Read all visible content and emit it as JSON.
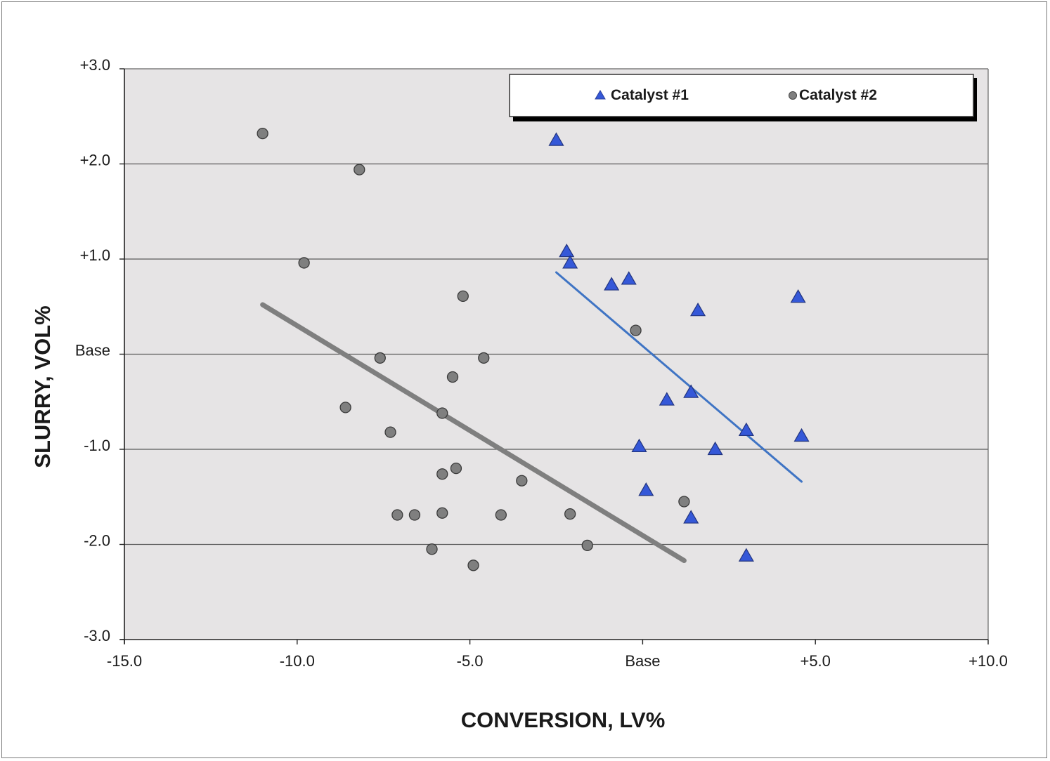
{
  "chart_data": {
    "type": "scatter",
    "xlabel": "CONVERSION, LV%",
    "ylabel": "SLURRY, VOL%",
    "xlim": [
      -15,
      10
    ],
    "ylim": [
      -3,
      3
    ],
    "x_ticks": [
      {
        "value": -15,
        "label": "-15.0"
      },
      {
        "value": -10,
        "label": "-10.0"
      },
      {
        "value": -5,
        "label": "-5.0"
      },
      {
        "value": 0,
        "label": "Base"
      },
      {
        "value": 5,
        "label": "+5.0"
      },
      {
        "value": 10,
        "label": "+10.0"
      }
    ],
    "y_ticks": [
      {
        "value": 3,
        "label": "+3.0"
      },
      {
        "value": 2,
        "label": "+2.0"
      },
      {
        "value": 1,
        "label": "+1.0"
      },
      {
        "value": 0,
        "label": "Base"
      },
      {
        "value": -1,
        "label": "-1.0"
      },
      {
        "value": -2,
        "label": "-2.0"
      },
      {
        "value": -3,
        "label": "-3.0"
      }
    ],
    "grid": {
      "horizontal": true,
      "vertical": false
    },
    "legend": {
      "placement": "top-right"
    },
    "plot_background": "#e6e4e5",
    "series": [
      {
        "name": "Catalyst #1",
        "marker": "triangle",
        "color": "#3558d8",
        "points": [
          [
            -2.5,
            2.25
          ],
          [
            -2.2,
            1.08
          ],
          [
            -2.1,
            0.96
          ],
          [
            -0.9,
            0.73
          ],
          [
            -0.4,
            0.79
          ],
          [
            1.6,
            0.46
          ],
          [
            4.5,
            0.6
          ],
          [
            0.7,
            -0.48
          ],
          [
            1.4,
            -0.4
          ],
          [
            -0.1,
            -0.97
          ],
          [
            2.1,
            -1.0
          ],
          [
            3.0,
            -0.8
          ],
          [
            4.6,
            -0.86
          ],
          [
            0.1,
            -1.43
          ],
          [
            1.4,
            -1.72
          ],
          [
            3.0,
            -2.12
          ]
        ],
        "trend": {
          "x": [
            -2.5,
            4.6
          ],
          "y": [
            0.86,
            -1.34
          ],
          "color": "#3f74c4"
        }
      },
      {
        "name": "Catalyst #2",
        "marker": "circle",
        "color": "#7f7f7f",
        "points": [
          [
            -11.0,
            2.32
          ],
          [
            -8.2,
            1.94
          ],
          [
            -9.8,
            0.96
          ],
          [
            -5.2,
            0.61
          ],
          [
            -0.2,
            0.25
          ],
          [
            -7.6,
            -0.04
          ],
          [
            -4.6,
            -0.04
          ],
          [
            -5.5,
            -0.24
          ],
          [
            -8.6,
            -0.56
          ],
          [
            -5.8,
            -0.62
          ],
          [
            -7.3,
            -0.82
          ],
          [
            -5.8,
            -1.26
          ],
          [
            -5.4,
            -1.2
          ],
          [
            -3.5,
            -1.33
          ],
          [
            -7.1,
            -1.69
          ],
          [
            -6.6,
            -1.69
          ],
          [
            -5.8,
            -1.67
          ],
          [
            -4.1,
            -1.69
          ],
          [
            -2.1,
            -1.68
          ],
          [
            1.2,
            -1.55
          ],
          [
            -6.1,
            -2.05
          ],
          [
            -1.6,
            -2.01
          ],
          [
            -4.9,
            -2.22
          ]
        ],
        "trend": {
          "x": [
            -11.0,
            1.2
          ],
          "y": [
            0.52,
            -2.17
          ],
          "color": "#7f7f7f"
        }
      }
    ]
  }
}
